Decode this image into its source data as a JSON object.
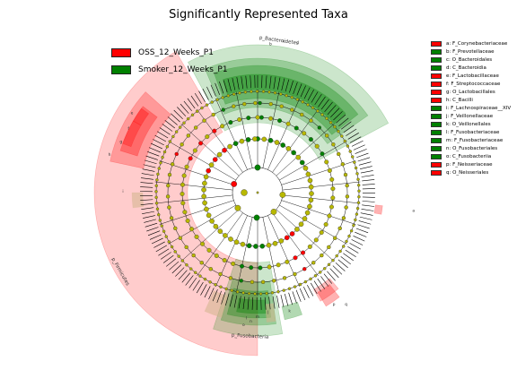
{
  "title": "Significantly Represented Taxa",
  "colors": {
    "oss": "#ff0000",
    "smoker": "#008000",
    "node_neutral": "#b8b800",
    "edge": "#000000",
    "box_neutral": "#d2b48c"
  },
  "groups": [
    {
      "label": "OSS_12_Weeks_P1",
      "color": "#ff0000"
    },
    {
      "label": "Smoker_12_Weeks_P1",
      "color": "#008000"
    }
  ],
  "taxa": [
    {
      "key": "a",
      "label": "a: F_Corynebacteriaceae",
      "group": "oss"
    },
    {
      "key": "b",
      "label": "b: F_Prevotellaceae",
      "group": "smoker"
    },
    {
      "key": "c",
      "label": "c: O_Bacteroidales",
      "group": "smoker"
    },
    {
      "key": "d",
      "label": "d: C_Bacteroidia",
      "group": "smoker"
    },
    {
      "key": "e",
      "label": "e: F_Lactobacillaceae",
      "group": "oss"
    },
    {
      "key": "f",
      "label": "f: F_Streptococcaceae",
      "group": "oss"
    },
    {
      "key": "g",
      "label": "g: O_Lactobacillales",
      "group": "oss"
    },
    {
      "key": "h",
      "label": "h: C_Bacilli",
      "group": "oss"
    },
    {
      "key": "i",
      "label": "i: F_Lachnospiraceae__XIV",
      "group": "smoker"
    },
    {
      "key": "j",
      "label": "j: F_Veillonellaceae",
      "group": "smoker"
    },
    {
      "key": "k",
      "label": "k: O_Veillonellales",
      "group": "smoker"
    },
    {
      "key": "l",
      "label": "l: F_Fusobacteriaceae",
      "group": "smoker"
    },
    {
      "key": "m",
      "label": "m: F_Fusobacteriaceae",
      "group": "smoker"
    },
    {
      "key": "n",
      "label": "n: O_Fusobacteriales",
      "group": "smoker"
    },
    {
      "key": "o",
      "label": "o: C_Fusobacteriia",
      "group": "smoker"
    },
    {
      "key": "p",
      "label": "p: F_Neisseriaceae",
      "group": "oss"
    },
    {
      "key": "q",
      "label": "q: O_Neisseriales",
      "group": "oss"
    }
  ],
  "phylum_labels": {
    "bacteroidetes": "p_Bacteroidetes",
    "firmicutes": "p_Firmicutes",
    "fusobacteria": "p_Fusobacteria"
  }
}
